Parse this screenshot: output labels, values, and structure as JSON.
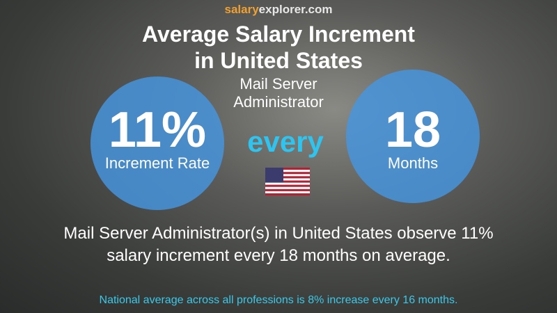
{
  "brand": {
    "part1": "salary",
    "part2": "explorer.com"
  },
  "title": {
    "line1": "Average Salary Increment",
    "line2": "in United States"
  },
  "job": {
    "line1": "Mail Server",
    "line2": "Administrator"
  },
  "increment": {
    "value": "11%",
    "label": "Increment Rate"
  },
  "connector": "every",
  "period": {
    "value": "18",
    "label": "Months"
  },
  "summary": {
    "line1": "Mail Server Administrator(s) in United States observe 11%",
    "line2": "salary increment every 18 months on average."
  },
  "footer": "National average across all professions is 8% increase every 16 months."
}
